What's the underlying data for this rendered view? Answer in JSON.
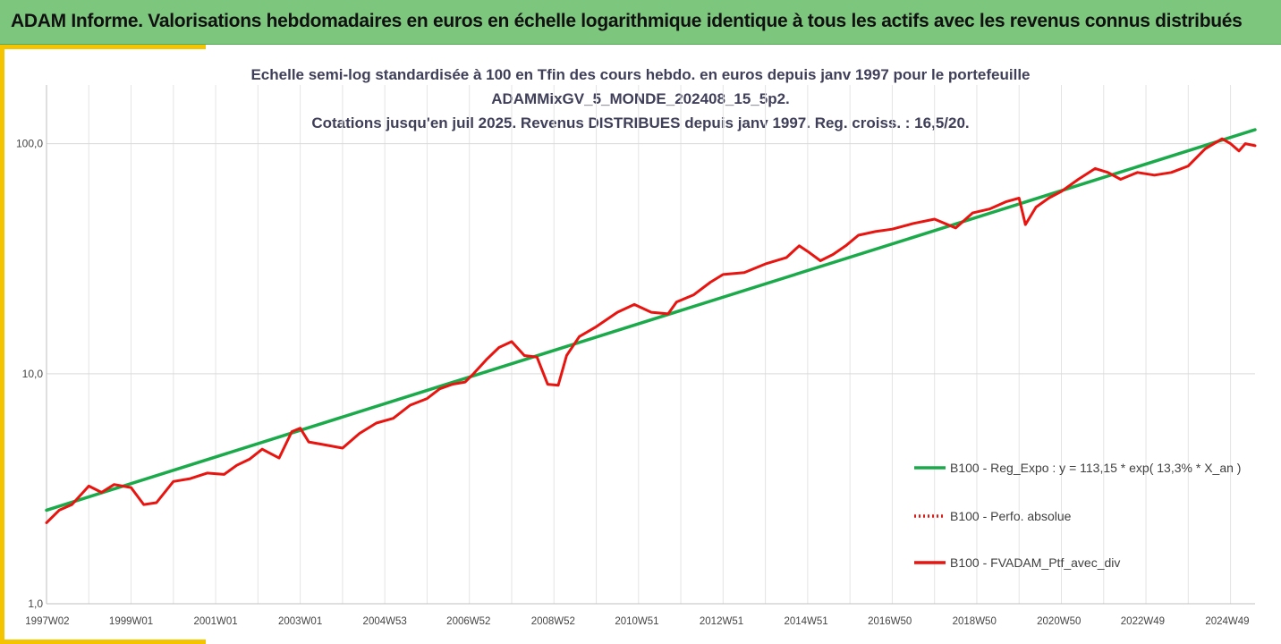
{
  "header": {
    "title": "ADAM Informe. Valorisations hebdomadaires en euros en échelle logarithmique identique à tous les actifs avec les revenus connus distribués"
  },
  "colors": {
    "banner": "#7dc67d",
    "accent": "#f5c400",
    "regression": "#1aaa4a",
    "portfolio": "#e8140f"
  },
  "chart_data": {
    "type": "line",
    "title_lines": [
      "Echelle semi-log standardisée à 100 en Tfin des cours hebdo.  en euros depuis janv 1997 pour le portefeuille",
      "ADAMMixGV_5_MONDE_202408_15_5p2.",
      "Cotations  jusqu'en juil 2025. Revenus DISTRIBUES depuis janv 1997. Reg. croiss. : 16,5/20."
    ],
    "y_scale": "log",
    "ylim": [
      1,
      180
    ],
    "y_ticks": [
      "1,0",
      "10,0",
      "100,0"
    ],
    "x_range": [
      1997.0,
      2025.58
    ],
    "x_tick_labels": [
      "1997W02",
      "1999W01",
      "2001W01",
      "2003W01",
      "2004W53",
      "2006W52",
      "2008W52",
      "2010W51",
      "2012W51",
      "2014W51",
      "2016W50",
      "2018W50",
      "2020W50",
      "2022W49",
      "2024W49"
    ],
    "grid": true,
    "legend_position": "right",
    "series": [
      {
        "name": "B100 - Reg_Expo : y = 113,15 * exp( 13,3% *  X_an )",
        "style": "solid",
        "color": "#1aaa4a",
        "x": [
          1997.0,
          2025.58
        ],
        "y": [
          2.55,
          115
        ]
      },
      {
        "name": "B100 - Perfo. absolue",
        "style": "dotted",
        "color": "#e8140f",
        "x": [],
        "y": []
      },
      {
        "name": "B100 - FVADAM_Ptf_avec_div",
        "style": "solid",
        "color": "#e8140f",
        "x": [
          1997.0,
          1997.3,
          1997.6,
          1998.0,
          1998.3,
          1998.6,
          1999.0,
          1999.3,
          1999.6,
          2000.0,
          2000.4,
          2000.8,
          2001.2,
          2001.5,
          2001.8,
          2002.1,
          2002.5,
          2002.8,
          2003.0,
          2003.2,
          2003.6,
          2004.0,
          2004.4,
          2004.8,
          2005.2,
          2005.6,
          2006.0,
          2006.3,
          2006.6,
          2006.9,
          2007.1,
          2007.4,
          2007.7,
          2008.0,
          2008.3,
          2008.6,
          2008.85,
          2009.1,
          2009.3,
          2009.6,
          2010.0,
          2010.5,
          2010.9,
          2011.3,
          2011.7,
          2011.9,
          2012.3,
          2012.7,
          2013.0,
          2013.5,
          2014.0,
          2014.5,
          2014.8,
          2015.0,
          2015.3,
          2015.6,
          2015.9,
          2016.2,
          2016.6,
          2017.0,
          2017.5,
          2018.0,
          2018.5,
          2018.9,
          2019.3,
          2019.7,
          2020.0,
          2020.15,
          2020.4,
          2020.7,
          2021.0,
          2021.4,
          2021.8,
          2022.1,
          2022.4,
          2022.8,
          2023.2,
          2023.6,
          2024.0,
          2024.4,
          2024.8,
          2025.0,
          2025.2,
          2025.35,
          2025.58
        ],
        "y": [
          2.25,
          2.55,
          2.7,
          3.25,
          3.05,
          3.3,
          3.2,
          2.7,
          2.75,
          3.4,
          3.5,
          3.7,
          3.65,
          4.0,
          4.25,
          4.7,
          4.3,
          5.6,
          5.8,
          5.05,
          4.9,
          4.75,
          5.5,
          6.1,
          6.4,
          7.3,
          7.8,
          8.6,
          9.0,
          9.2,
          10.0,
          11.5,
          13.0,
          13.8,
          12.0,
          11.8,
          9.0,
          8.9,
          12.0,
          14.5,
          16.0,
          18.5,
          20.0,
          18.5,
          18.2,
          20.5,
          22.0,
          25.0,
          27.0,
          27.5,
          30.0,
          32.0,
          36.0,
          34.0,
          31.0,
          33.0,
          36.0,
          40.0,
          41.5,
          42.5,
          45.0,
          47.0,
          43.0,
          50.0,
          52.0,
          56.0,
          58.0,
          44.5,
          53.0,
          58.0,
          62.0,
          70.0,
          78.0,
          75.0,
          70.0,
          75.0,
          73.0,
          75.0,
          80.0,
          95.0,
          105.0,
          100.0,
          93.0,
          100.0,
          98.0
        ]
      }
    ]
  }
}
